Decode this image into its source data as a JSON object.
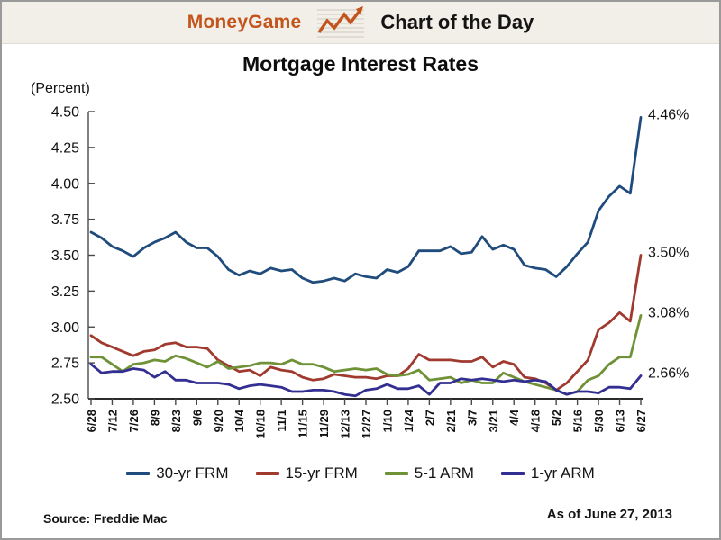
{
  "header": {
    "brand": "MoneyGame",
    "brand_color": "#C3551C",
    "banner_bg": "#F2EEE8",
    "title": "Chart of the Day"
  },
  "chart_title": "Mortgage Interest Rates",
  "unit_label": "(Percent)",
  "footer": {
    "source": "Source: Freddie Mac",
    "as_of": "As of June 27, 2013"
  },
  "chart_data": {
    "type": "line",
    "title": "Mortgage Interest Rates",
    "ylabel": "(Percent)",
    "ylim": [
      2.5,
      4.5
    ],
    "grid": false,
    "legend_position": "bottom",
    "y_tick_labels": [
      "2.50",
      "2.75",
      "3.00",
      "3.25",
      "3.50",
      "3.75",
      "4.00",
      "4.25",
      "4.50"
    ],
    "x": [
      "6/28",
      "7/5",
      "7/12",
      "7/19",
      "7/26",
      "8/2",
      "8/9",
      "8/16",
      "8/23",
      "8/30",
      "9/6",
      "9/13",
      "9/20",
      "9/27",
      "10/4",
      "10/11",
      "10/18",
      "10/25",
      "11/1",
      "11/8",
      "11/15",
      "11/21",
      "11/29",
      "12/6",
      "12/13",
      "12/20",
      "12/27",
      "1/3",
      "1/10",
      "1/17",
      "1/24",
      "1/31",
      "2/7",
      "2/14",
      "2/21",
      "2/28",
      "3/7",
      "3/14",
      "3/21",
      "3/28",
      "4/4",
      "4/11",
      "4/18",
      "4/25",
      "5/2",
      "5/9",
      "5/16",
      "5/23",
      "5/30",
      "6/6",
      "6/13",
      "6/20",
      "6/27"
    ],
    "x_tick_labels": [
      "6/28",
      "7/12",
      "7/26",
      "8/9",
      "8/23",
      "9/6",
      "9/20",
      "10/4",
      "10/18",
      "11/1",
      "11/15",
      "11/29",
      "12/13",
      "12/27",
      "1/10",
      "1/24",
      "2/7",
      "2/21",
      "3/7",
      "3/21",
      "4/4",
      "4/18",
      "5/2",
      "5/16",
      "5/30",
      "6/13",
      "6/27"
    ],
    "x_tick_every": 2,
    "series": [
      {
        "name": "30-yr FRM",
        "color": "#1F4C7C",
        "end_label": "4.46%",
        "values": [
          3.66,
          3.62,
          3.56,
          3.53,
          3.49,
          3.55,
          3.59,
          3.62,
          3.66,
          3.59,
          3.55,
          3.55,
          3.49,
          3.4,
          3.36,
          3.39,
          3.37,
          3.41,
          3.39,
          3.4,
          3.34,
          3.31,
          3.32,
          3.34,
          3.32,
          3.37,
          3.35,
          3.34,
          3.4,
          3.38,
          3.42,
          3.53,
          3.53,
          3.53,
          3.56,
          3.51,
          3.52,
          3.63,
          3.54,
          3.57,
          3.54,
          3.43,
          3.41,
          3.4,
          3.35,
          3.42,
          3.51,
          3.59,
          3.81,
          3.91,
          3.98,
          3.93,
          4.46
        ]
      },
      {
        "name": "15-yr FRM",
        "color": "#A0392E",
        "end_label": "3.50%",
        "values": [
          2.94,
          2.89,
          2.86,
          2.83,
          2.8,
          2.83,
          2.84,
          2.88,
          2.89,
          2.86,
          2.86,
          2.85,
          2.77,
          2.73,
          2.69,
          2.7,
          2.66,
          2.72,
          2.7,
          2.69,
          2.65,
          2.63,
          2.64,
          2.67,
          2.66,
          2.65,
          2.65,
          2.64,
          2.66,
          2.66,
          2.71,
          2.81,
          2.77,
          2.77,
          2.77,
          2.76,
          2.76,
          2.79,
          2.72,
          2.76,
          2.74,
          2.65,
          2.64,
          2.61,
          2.56,
          2.61,
          2.69,
          2.77,
          2.98,
          3.03,
          3.1,
          3.04,
          3.5
        ]
      },
      {
        "name": "5-1 ARM",
        "color": "#6F9237",
        "end_label": "3.08%",
        "values": [
          2.79,
          2.79,
          2.74,
          2.69,
          2.74,
          2.75,
          2.77,
          2.76,
          2.8,
          2.78,
          2.75,
          2.72,
          2.76,
          2.71,
          2.72,
          2.73,
          2.75,
          2.75,
          2.74,
          2.77,
          2.74,
          2.74,
          2.72,
          2.69,
          2.7,
          2.71,
          2.7,
          2.71,
          2.67,
          2.66,
          2.67,
          2.7,
          2.63,
          2.64,
          2.65,
          2.61,
          2.63,
          2.61,
          2.61,
          2.68,
          2.65,
          2.62,
          2.6,
          2.58,
          2.56,
          2.53,
          2.55,
          2.63,
          2.66,
          2.74,
          2.79,
          2.79,
          3.08
        ]
      },
      {
        "name": "1-yr ARM",
        "color": "#332E91",
        "end_label": "2.66%",
        "values": [
          2.74,
          2.68,
          2.69,
          2.69,
          2.71,
          2.7,
          2.65,
          2.69,
          2.63,
          2.63,
          2.61,
          2.61,
          2.61,
          2.6,
          2.57,
          2.59,
          2.6,
          2.59,
          2.58,
          2.55,
          2.55,
          2.56,
          2.56,
          2.55,
          2.53,
          2.52,
          2.56,
          2.57,
          2.6,
          2.57,
          2.57,
          2.59,
          2.53,
          2.61,
          2.61,
          2.64,
          2.63,
          2.64,
          2.63,
          2.62,
          2.63,
          2.62,
          2.63,
          2.62,
          2.56,
          2.53,
          2.55,
          2.55,
          2.54,
          2.58,
          2.58,
          2.57,
          2.66
        ]
      }
    ]
  }
}
